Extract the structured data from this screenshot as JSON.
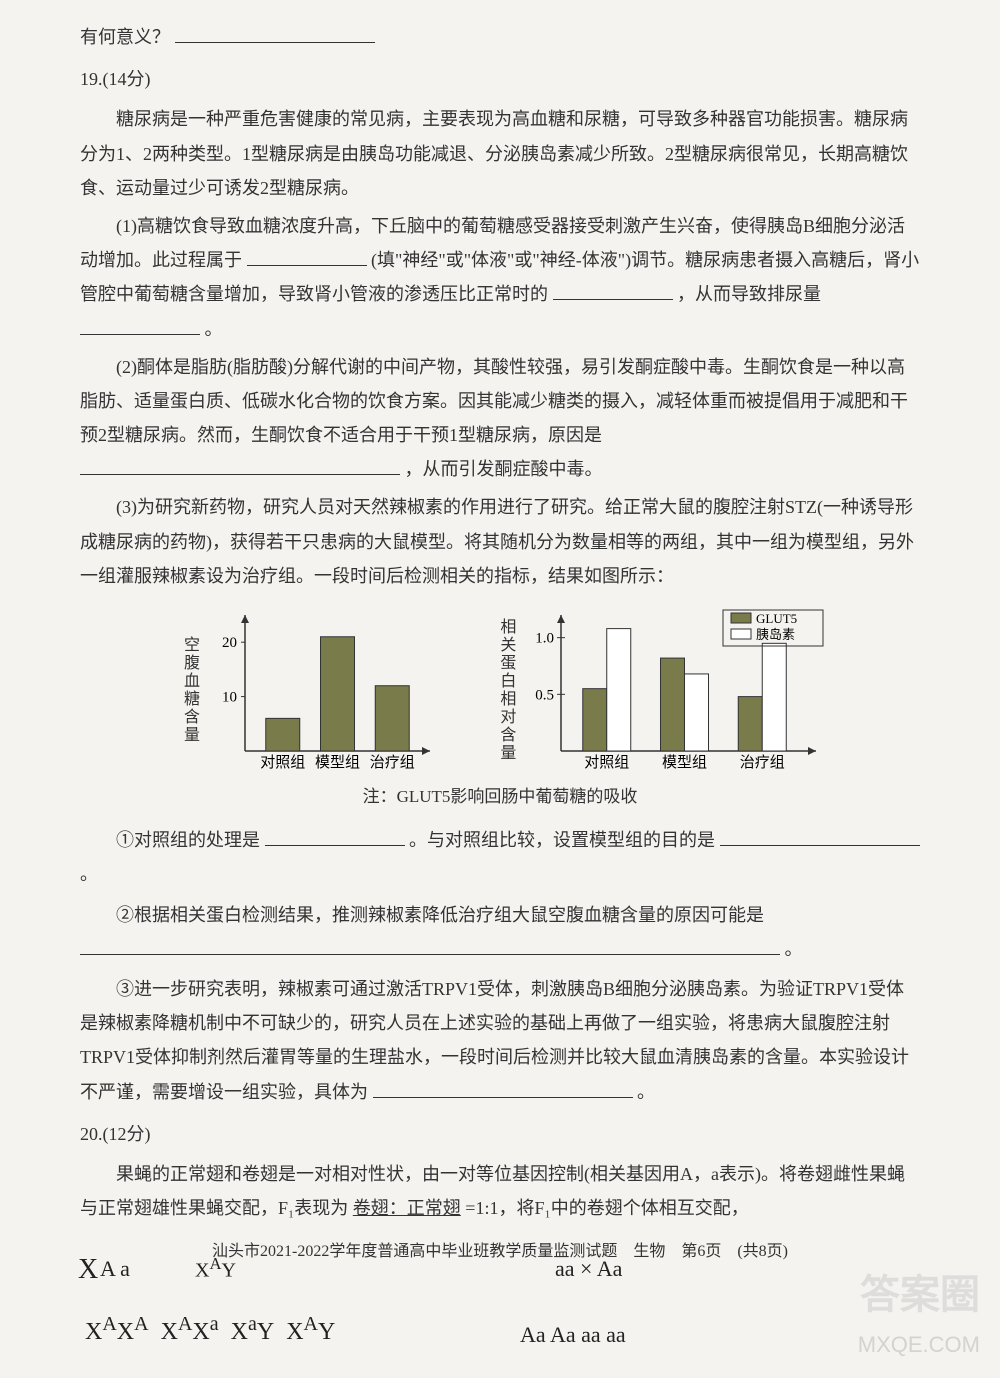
{
  "header_text": "有何意义？",
  "q19": {
    "number": "19.(14分)",
    "p1": "糖尿病是一种严重危害健康的常见病，主要表现为高血糖和尿糖，可导致多种器官功能损害。糖尿病分为1、2两种类型。1型糖尿病是由胰岛功能减退、分泌胰岛素减少所致。2型糖尿病很常见，长期高糖饮食、运动量过少可诱发2型糖尿病。",
    "p2a": "(1)高糖饮食导致血糖浓度升高，下丘脑中的葡萄糖感受器接受刺激产生兴奋，使得胰岛B细胞分泌活动增加。此过程属于",
    "p2b": "(填\"神经\"或\"体液\"或\"神经-体液\")调节。糖尿病患者摄入高糖后，肾小管腔中葡萄糖含量增加，导致肾小管液的渗透压比正常时的",
    "p2c": "，从而导致排尿量",
    "p2d": "。",
    "p3a": "(2)酮体是脂肪(脂肪酸)分解代谢的中间产物，其酸性较强，易引发酮症酸中毒。生酮饮食是一种以高脂肪、适量蛋白质、低碳水化合物的饮食方案。因其能减少糖类的摄入，减轻体重而被提倡用于减肥和干预2型糖尿病。然而，生酮饮食不适合用于干预1型糖尿病，原因是",
    "p3b": "，从而引发酮症酸中毒。",
    "p4": "(3)为研究新药物，研究人员对天然辣椒素的作用进行了研究。给正常大鼠的腹腔注射STZ(一种诱导形成糖尿病的药物)，获得若干只患病的大鼠模型。将其随机分为数量相等的两组，其中一组为模型组，另外一组灌服辣椒素设为治疗组。一段时间后检测相关的指标，结果如图所示：",
    "chart1": {
      "y_label": "空腹血糖含量",
      "categories": [
        "对照组",
        "模型组",
        "治疗组"
      ],
      "values": [
        6,
        21,
        12
      ],
      "ylim": [
        0,
        25
      ],
      "yticks": [
        10,
        20
      ],
      "bar_color": "#7a7b4a",
      "axis_color": "#333333",
      "label_fontsize": 15
    },
    "chart2": {
      "y_label": "相关蛋白相对含量",
      "categories": [
        "对照组",
        "模型组",
        "治疗组"
      ],
      "series": [
        {
          "name": "GLUT5",
          "color": "#7a7b4a",
          "values": [
            0.55,
            0.82,
            0.48
          ]
        },
        {
          "name": "胰岛素",
          "color": "#ffffff",
          "values": [
            1.08,
            0.68,
            0.95
          ]
        }
      ],
      "ylim": [
        0,
        1.2
      ],
      "yticks": [
        0.5,
        1.0
      ],
      "axis_color": "#333333",
      "label_fontsize": 15
    },
    "chart_note": "注：GLUT5影响回肠中葡萄糖的吸收",
    "sub1a": "①对照组的处理是",
    "sub1b": "。与对照组比较，设置模型组的目的是",
    "sub1c": "。",
    "sub2a": "②根据相关蛋白检测结果，推测辣椒素降低治疗组大鼠空腹血糖含量的原因可能是",
    "sub2b": "。",
    "sub3a": "③进一步研究表明，辣椒素可通过激活TRPV1受体，刺激胰岛B细胞分泌胰岛素。为验证TRPV1受体是辣椒素降糖机制中不可缺少的，研究人员在上述实验的基础上再做了一组实验，将患病大鼠腹腔注射TRPV1受体抑制剂然后灌胃等量的生理盐水，一段时间后检测并比较大鼠血清胰岛素的含量。本实验设计不严谨，需要增设一组实验，具体为",
    "sub3b": "。"
  },
  "q20": {
    "number": "20.(12分)",
    "p1a": "果蝇的正常翅和卷翅是一对相对性状，由一对等位基因控制(相关基因用A，a表示)。将卷翅雌性果蝇与正常翅雄性果蝇交配，F₁表现为",
    "p1_underlined": "卷翅：正常翅",
    "p1b": "=1:1，将F₁中的卷翅个体相互交配，"
  },
  "footer": "汕头市2021-2022学年度普通高中毕业班教学质量监测试题　生物　第6页　(共8页)",
  "handwriting": {
    "hw1": "A  a",
    "hw2": "X  Y",
    "hw3": "aa × Aa",
    "hw4": "Aa  Aa  aa   aa",
    "hw5a": "X",
    "hw5b": "X",
    "hw5c": "X",
    "hw5d": "X",
    "sup_combo": [
      "A",
      "A",
      "A",
      "a",
      "A",
      "a",
      "A",
      "",
      "A"
    ]
  },
  "watermarks": {
    "w1": "答案圈",
    "w2": "MXQE.COM"
  }
}
